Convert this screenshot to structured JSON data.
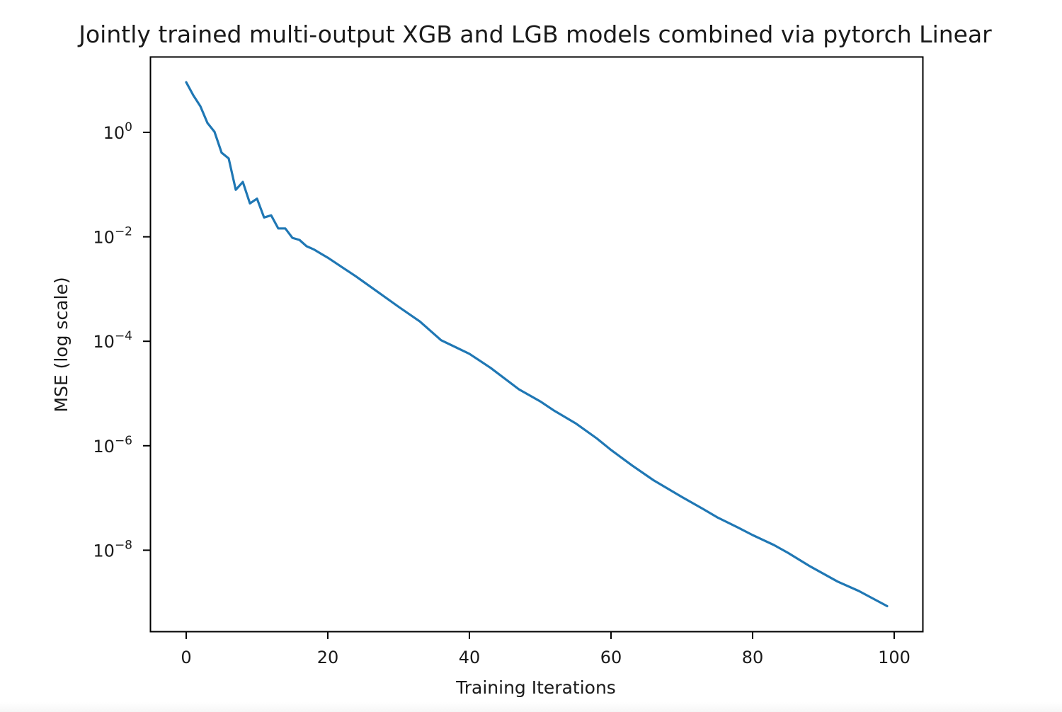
{
  "chart_data": {
    "type": "line",
    "title": "Jointly trained multi-output XGB and LGB models combined via pytorch Linear",
    "xlabel": "Training Iterations",
    "ylabel": "MSE (log scale)",
    "yscale": "log",
    "xlim": [
      -5,
      104
    ],
    "ylim": [
      1.5e-10,
      60
    ],
    "grid": false,
    "legend": null,
    "x_ticks": [
      0,
      20,
      40,
      60,
      80,
      100
    ],
    "x_tick_labels": [
      "0",
      "20",
      "40",
      "60",
      "80",
      "100"
    ],
    "y_ticks": [
      1,
      0.01,
      0.0001,
      1e-06,
      1e-08
    ],
    "y_tick_labels": [
      {
        "base": "10",
        "exp": "0"
      },
      {
        "base": "10",
        "exp": "−2"
      },
      {
        "base": "10",
        "exp": "−4"
      },
      {
        "base": "10",
        "exp": "−6"
      },
      {
        "base": "10",
        "exp": "−8"
      }
    ],
    "line_color": "#1f77b4",
    "series": [
      {
        "name": "MSE",
        "x": [
          0,
          1,
          2,
          3,
          4,
          5,
          6,
          7,
          8,
          9,
          10,
          11,
          12,
          13,
          14,
          15,
          16,
          17,
          18,
          19,
          20,
          22,
          24,
          27,
          30,
          33,
          36,
          40,
          43,
          47,
          50,
          52,
          55,
          58,
          60,
          63,
          66,
          70,
          73,
          75,
          78,
          80,
          83,
          85,
          88,
          92,
          95,
          99
        ],
        "log10_y": [
          0.96,
          0.71,
          0.5,
          0.18,
          0.01,
          -0.39,
          -0.5,
          -1.1,
          -0.95,
          -1.36,
          -1.27,
          -1.63,
          -1.59,
          -1.84,
          -1.84,
          -2.02,
          -2.06,
          -2.18,
          -2.24,
          -2.32,
          -2.4,
          -2.58,
          -2.76,
          -3.05,
          -3.34,
          -3.62,
          -3.98,
          -4.24,
          -4.51,
          -4.92,
          -5.15,
          -5.33,
          -5.57,
          -5.86,
          -6.08,
          -6.38,
          -6.66,
          -6.98,
          -7.21,
          -7.37,
          -7.57,
          -7.71,
          -7.9,
          -8.05,
          -8.3,
          -8.6,
          -8.78,
          -9.07
        ]
      }
    ]
  }
}
